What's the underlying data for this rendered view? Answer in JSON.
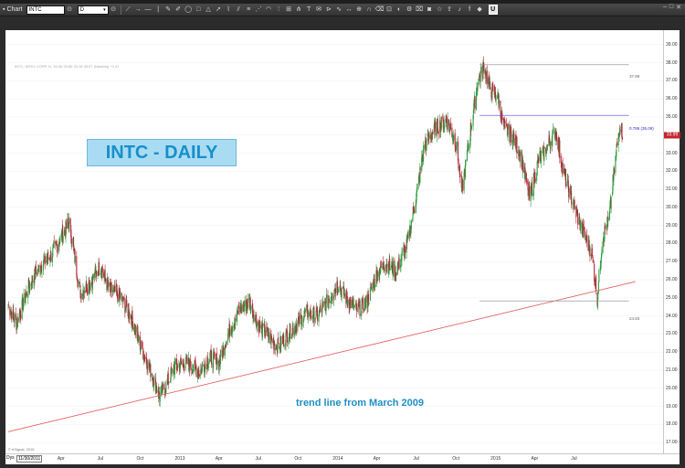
{
  "toolbar": {
    "chart_label": "Chart",
    "symbol": "INTC",
    "period": "D",
    "tools": [
      "line-tool",
      "ray-tool",
      "hline-tool",
      "vline-tool",
      "pencil-tool",
      "brush-tool",
      "ellipse-tool",
      "rect-tool",
      "triangle-tool",
      "arrow-tool",
      "polyline-tool",
      "channel-tool",
      "fib-retracement-tool",
      "fib-fan-tool",
      "fib-arc-tool",
      "fib-time-tool",
      "gann-tool",
      "pitchfork-tool",
      "text-tool",
      "note-tool",
      "price-label-tool",
      "cycles-tool",
      "measure-tool",
      "zoom-tool",
      "magnet-tool",
      "eraser-tool",
      "lock-tool",
      "hide-tool",
      "settings-tool",
      "trash-tool",
      "camera-tool",
      "star-tool",
      "share-tool",
      "twitter-icon",
      "facebook-icon",
      "fill-tool",
      "u-tool"
    ],
    "u_label": "U"
  },
  "chart": {
    "info_line": "INTC, INTEL CORP, D, 33.36 33.80 33.18 33.67 (Nasdaq) +0.41",
    "title": "INTC - DAILY",
    "annotation": "trend line from March 2009",
    "copyright": "© eSignal, 2015",
    "period_label": "Dys",
    "start_date": "11/30/2011",
    "colors": {
      "up": "#2e9d3e",
      "down": "#b8233a",
      "trend": "#e26060",
      "fib": "#8a8a8a",
      "fib_786": "#4a4ad8",
      "price_tag": "#c0272d"
    }
  },
  "chart_data": {
    "type": "candlestick",
    "title": "INTC - DAILY",
    "ylim": [
      16.4,
      39.8
    ],
    "x_range": [
      "2011-12-01",
      "2015-10-01"
    ],
    "y_ticks": [
      17,
      18,
      19,
      20,
      21,
      22,
      23,
      24,
      25,
      26,
      27,
      28,
      29,
      30,
      31,
      32,
      33,
      34,
      35,
      36,
      37,
      38,
      39
    ],
    "y_tick_labels": [
      "17.00",
      "18.00",
      "19.00",
      "20.00",
      "21.00",
      "22.00",
      "23.00",
      "24.00",
      "25.00",
      "26.00",
      "27.00",
      "28.00",
      "29.00",
      "30.00",
      "31.00",
      "32.00",
      "33.00",
      "34.00",
      "35.00",
      "36.00",
      "37.00",
      "38.00",
      "39.00"
    ],
    "x_tick_labels": [
      {
        "date": "2012-04-01",
        "label": "Apr"
      },
      {
        "date": "2012-07-01",
        "label": "Jul"
      },
      {
        "date": "2012-10-01",
        "label": "Oct"
      },
      {
        "date": "2013-01-01",
        "label": "2013"
      },
      {
        "date": "2013-04-01",
        "label": "Apr"
      },
      {
        "date": "2013-07-01",
        "label": "Jul"
      },
      {
        "date": "2013-10-01",
        "label": "Oct"
      },
      {
        "date": "2014-01-01",
        "label": "2014"
      },
      {
        "date": "2014-04-01",
        "label": "Apr"
      },
      {
        "date": "2014-07-01",
        "label": "Jul"
      },
      {
        "date": "2014-10-01",
        "label": "Oct"
      },
      {
        "date": "2015-01-01",
        "label": "2015"
      },
      {
        "date": "2015-04-01",
        "label": "Apr"
      },
      {
        "date": "2015-07-01",
        "label": "Jul"
      }
    ],
    "last_price": 33.99,
    "last_price_label": "33.99",
    "close_path": [
      {
        "date": "2011-12-01",
        "close": 24.6
      },
      {
        "date": "2011-12-20",
        "close": 23.6
      },
      {
        "date": "2012-01-20",
        "close": 25.8
      },
      {
        "date": "2012-02-15",
        "close": 26.8
      },
      {
        "date": "2012-03-10",
        "close": 27.4
      },
      {
        "date": "2012-04-05",
        "close": 28.5
      },
      {
        "date": "2012-04-20",
        "close": 29.2
      },
      {
        "date": "2012-05-15",
        "close": 25.3
      },
      {
        "date": "2012-06-10",
        "close": 25.9
      },
      {
        "date": "2012-07-01",
        "close": 26.8
      },
      {
        "date": "2012-07-20",
        "close": 25.5
      },
      {
        "date": "2012-08-15",
        "close": 25.1
      },
      {
        "date": "2012-09-10",
        "close": 24.0
      },
      {
        "date": "2012-10-01",
        "close": 22.4
      },
      {
        "date": "2012-10-20",
        "close": 21.3
      },
      {
        "date": "2012-11-15",
        "close": 19.6
      },
      {
        "date": "2012-12-05",
        "close": 20.4
      },
      {
        "date": "2012-12-20",
        "close": 21.2
      },
      {
        "date": "2013-01-20",
        "close": 21.4
      },
      {
        "date": "2013-02-15",
        "close": 20.9
      },
      {
        "date": "2013-03-10",
        "close": 21.7
      },
      {
        "date": "2013-04-01",
        "close": 21.4
      },
      {
        "date": "2013-04-20",
        "close": 22.9
      },
      {
        "date": "2013-05-15",
        "close": 24.2
      },
      {
        "date": "2013-06-10",
        "close": 24.8
      },
      {
        "date": "2013-07-01",
        "close": 23.5
      },
      {
        "date": "2013-07-20",
        "close": 23.0
      },
      {
        "date": "2013-08-15",
        "close": 22.3
      },
      {
        "date": "2013-09-10",
        "close": 23.1
      },
      {
        "date": "2013-10-01",
        "close": 23.6
      },
      {
        "date": "2013-10-20",
        "close": 24.2
      },
      {
        "date": "2013-11-15",
        "close": 24.0
      },
      {
        "date": "2013-12-10",
        "close": 24.9
      },
      {
        "date": "2014-01-01",
        "close": 25.8
      },
      {
        "date": "2014-01-20",
        "close": 25.0
      },
      {
        "date": "2014-02-15",
        "close": 24.3
      },
      {
        "date": "2014-03-10",
        "close": 24.8
      },
      {
        "date": "2014-04-01",
        "close": 26.3
      },
      {
        "date": "2014-04-20",
        "close": 26.9
      },
      {
        "date": "2014-05-15",
        "close": 26.5
      },
      {
        "date": "2014-06-10",
        "close": 27.9
      },
      {
        "date": "2014-07-01",
        "close": 30.6
      },
      {
        "date": "2014-07-20",
        "close": 33.4
      },
      {
        "date": "2014-08-15",
        "close": 34.4
      },
      {
        "date": "2014-09-10",
        "close": 34.8
      },
      {
        "date": "2014-10-01",
        "close": 33.6
      },
      {
        "date": "2014-10-15",
        "close": 30.9
      },
      {
        "date": "2014-11-01",
        "close": 33.8
      },
      {
        "date": "2014-11-20",
        "close": 36.9
      },
      {
        "date": "2014-12-05",
        "close": 37.8
      },
      {
        "date": "2014-12-20",
        "close": 36.5
      },
      {
        "date": "2015-01-05",
        "close": 36.2
      },
      {
        "date": "2015-01-20",
        "close": 34.4
      },
      {
        "date": "2015-02-10",
        "close": 33.9
      },
      {
        "date": "2015-03-01",
        "close": 32.8
      },
      {
        "date": "2015-03-20",
        "close": 30.5
      },
      {
        "date": "2015-04-10",
        "close": 32.6
      },
      {
        "date": "2015-05-01",
        "close": 33.4
      },
      {
        "date": "2015-05-20",
        "close": 34.3
      },
      {
        "date": "2015-06-05",
        "close": 32.1
      },
      {
        "date": "2015-06-25",
        "close": 30.5
      },
      {
        "date": "2015-07-10",
        "close": 29.4
      },
      {
        "date": "2015-07-25",
        "close": 28.4
      },
      {
        "date": "2015-08-10",
        "close": 27.6
      },
      {
        "date": "2015-08-24",
        "close": 25.0
      },
      {
        "date": "2015-09-05",
        "close": 28.4
      },
      {
        "date": "2015-09-20",
        "close": 29.3
      },
      {
        "date": "2015-10-01",
        "close": 31.8
      },
      {
        "date": "2015-10-15",
        "close": 34.7
      },
      {
        "date": "2015-10-22",
        "close": 34.0
      }
    ],
    "trend_line": {
      "start": {
        "date": "2011-12-01",
        "value": 17.6
      },
      "end": {
        "date": "2015-11-20",
        "value": 25.9
      }
    },
    "fib_levels": [
      {
        "label": "37.89",
        "value": 37.89,
        "start": "2014-11-25",
        "end": "2015-11-05"
      },
      {
        "label": "0.786 (35.09)",
        "value": 35.09,
        "start": "2014-11-25",
        "end": "2015-11-05"
      },
      {
        "label": "24.83",
        "value": 24.83,
        "start": "2014-11-25",
        "end": "2015-11-05"
      }
    ]
  }
}
